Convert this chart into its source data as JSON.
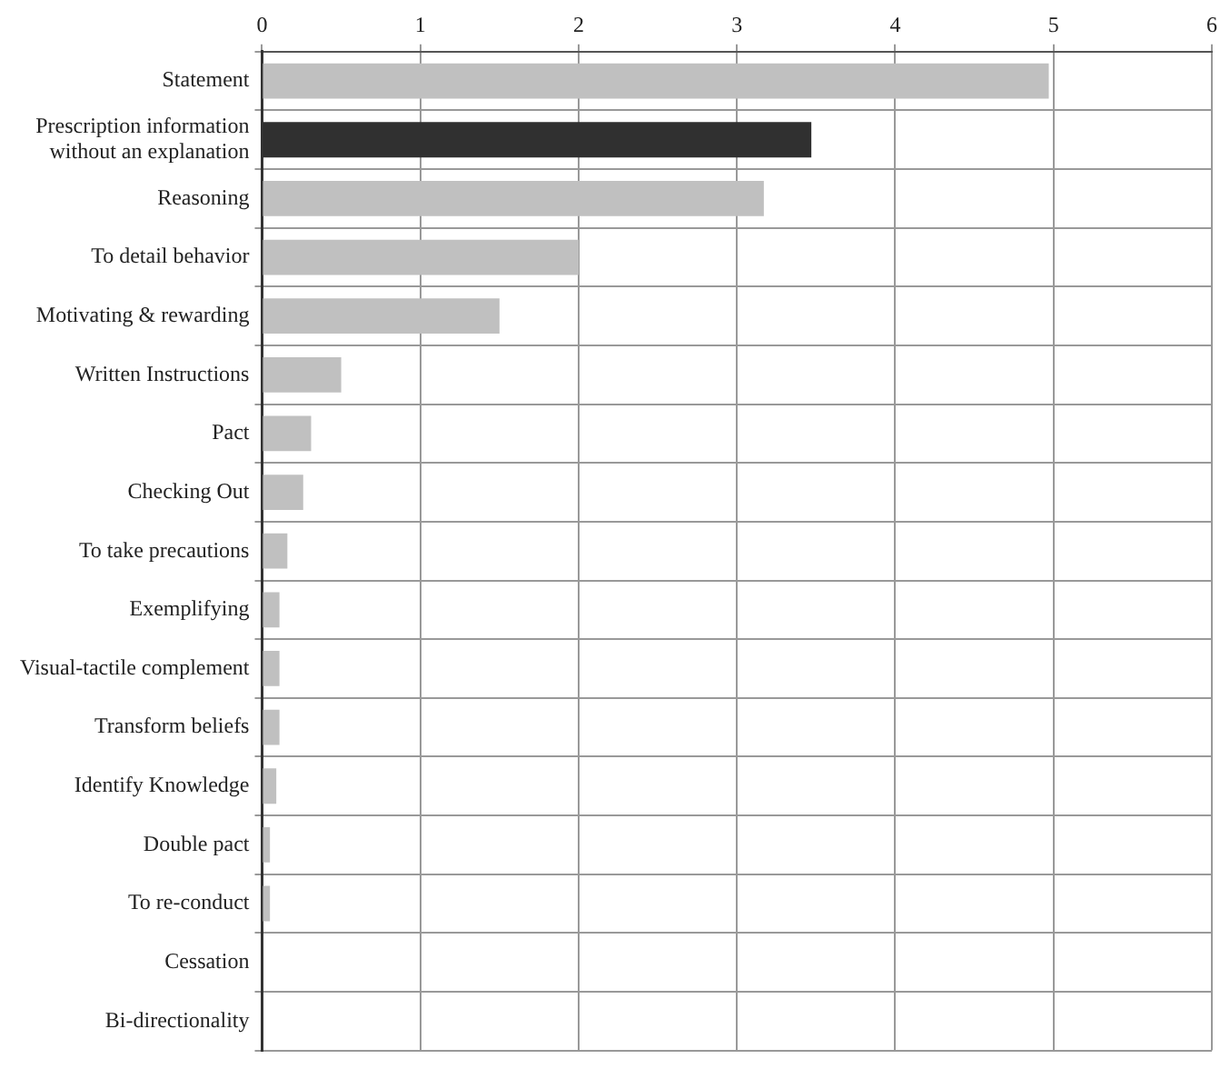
{
  "chart_data": {
    "type": "bar",
    "orientation": "horizontal",
    "categories": [
      "Statement",
      "Prescription information without an explanation",
      "Reasoning",
      "To detail behavior",
      "Motivating & rewarding",
      "Written Instructions",
      "Pact",
      "Checking Out",
      "To take precautions",
      "Exemplifying",
      "Visual-tactile complement",
      "Transform beliefs",
      "Identify Knowledge",
      "Double pact",
      "To re-conduct",
      "Cessation",
      "Bi-directionality"
    ],
    "values": [
      4.97,
      3.47,
      3.17,
      2.0,
      1.5,
      0.5,
      0.31,
      0.26,
      0.16,
      0.11,
      0.11,
      0.11,
      0.09,
      0.05,
      0.05,
      0,
      0
    ],
    "colors": [
      "#c0c0c0",
      "#303030",
      "#c0c0c0",
      "#c0c0c0",
      "#c0c0c0",
      "#c0c0c0",
      "#c0c0c0",
      "#c0c0c0",
      "#c0c0c0",
      "#c0c0c0",
      "#c0c0c0",
      "#c0c0c0",
      "#c0c0c0",
      "#c0c0c0",
      "#c0c0c0",
      "#c0c0c0",
      "#c0c0c0"
    ],
    "xlim": [
      0,
      6
    ],
    "xticks": [
      0,
      1,
      2,
      3,
      4,
      5,
      6
    ],
    "grid": true,
    "legend": false
  }
}
